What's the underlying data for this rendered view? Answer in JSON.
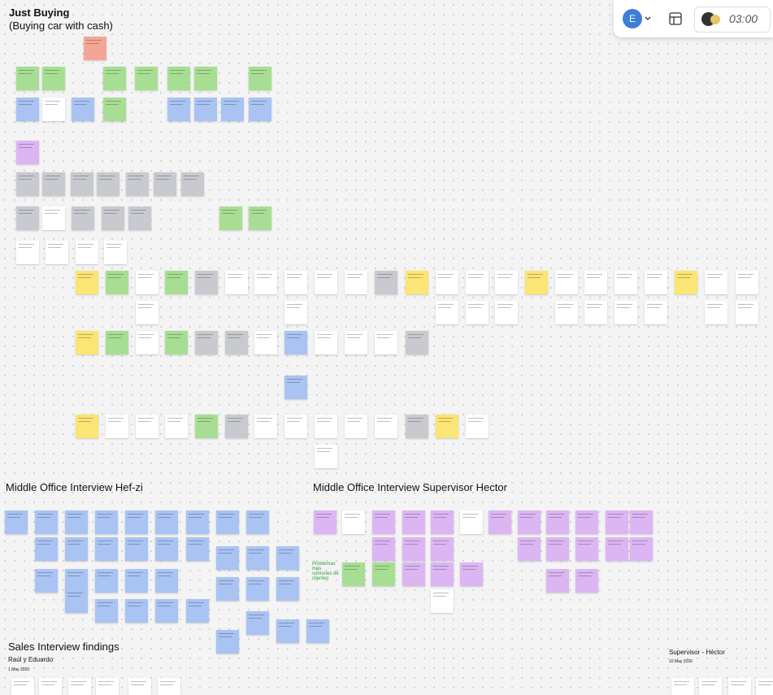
{
  "board": {
    "title": "Just Buying",
    "subtitle": "(Buying car with cash)",
    "sections": [
      {
        "title": "Middle Office Interview Hef-zi"
      },
      {
        "title": "Middle Office Interview Supervisor Hector",
        "note": "Problemas más comunes de clientes"
      },
      {
        "title": "Sales Interview findings",
        "author": "Raúl y Eduardo",
        "date": "1 May 2020"
      },
      {
        "title": "Supervisor - Héctor",
        "date": "10 May 2020"
      }
    ]
  },
  "toolbar": {
    "avatar": "E",
    "timer": "03:00"
  }
}
